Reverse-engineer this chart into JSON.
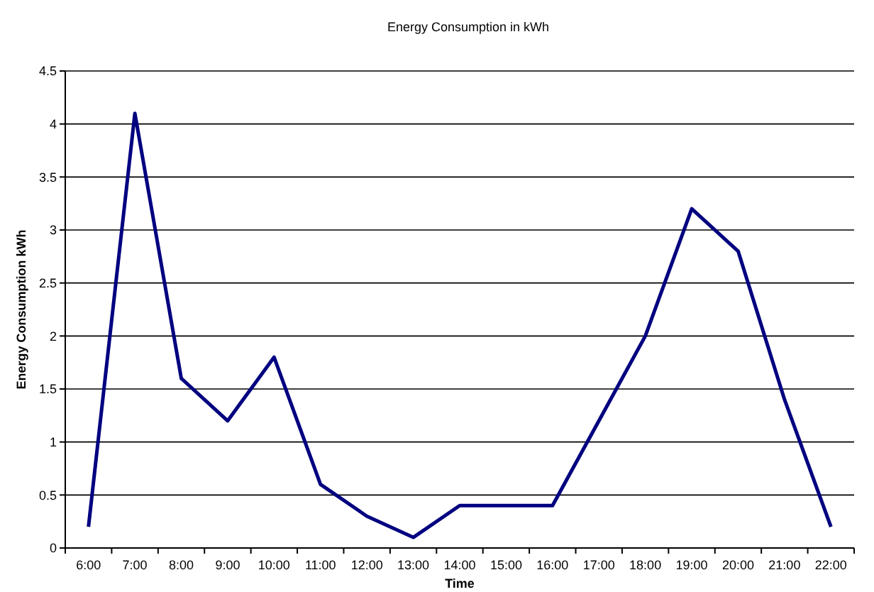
{
  "chart_data": {
    "type": "line",
    "title": "Energy Consumption in kWh",
    "xlabel": "Time",
    "ylabel": "Energy Consumption kWh",
    "categories": [
      "6:00",
      "7:00",
      "8:00",
      "9:00",
      "10:00",
      "11:00",
      "12:00",
      "13:00",
      "14:00",
      "15:00",
      "16:00",
      "17:00",
      "18:00",
      "19:00",
      "20:00",
      "21:00",
      "22:00"
    ],
    "series": [
      {
        "color": "#000080",
        "values": [
          0.2,
          4.1,
          1.6,
          1.2,
          1.8,
          0.6,
          0.3,
          0.1,
          0.4,
          0.4,
          0.4,
          1.2,
          2.0,
          3.2,
          2.8,
          1.4,
          0.2
        ]
      }
    ],
    "ylim": [
      0,
      4.5
    ],
    "yticks": [
      0,
      0.5,
      1,
      1.5,
      2,
      2.5,
      3,
      3.5,
      4,
      4.5
    ],
    "grid": "y",
    "marker": "none",
    "line_style": "solid"
  }
}
